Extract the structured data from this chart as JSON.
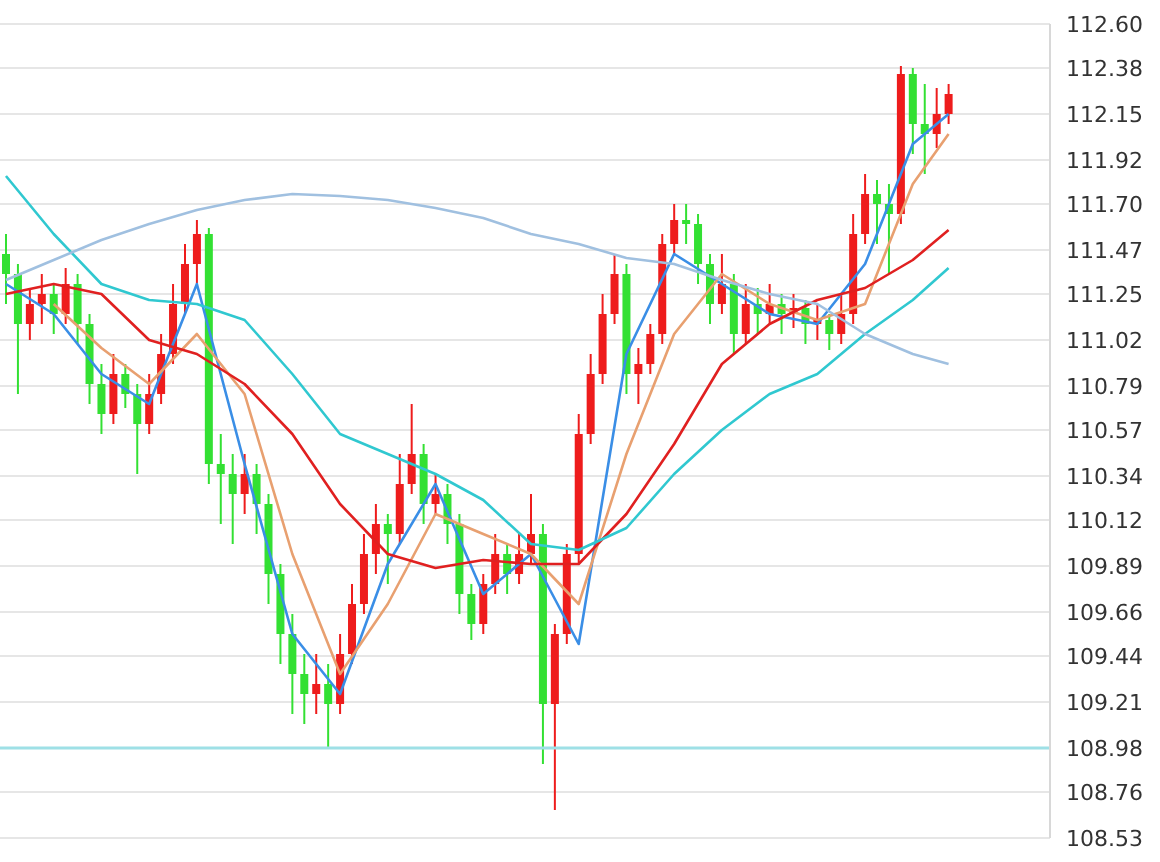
{
  "chart_data": {
    "type": "candlestick",
    "categories": [
      null,
      null,
      null,
      null,
      null,
      null,
      null,
      null,
      null,
      null,
      null,
      null,
      null,
      null,
      null,
      null,
      null,
      null,
      null,
      null,
      null,
      null,
      null,
      null,
      null,
      null,
      null,
      null,
      null,
      null,
      null,
      null,
      null,
      null,
      null,
      null,
      null,
      null,
      null,
      null,
      null,
      null,
      null,
      null,
      null,
      null,
      null,
      null,
      null,
      null,
      null,
      null,
      null,
      null,
      null,
      null,
      null,
      null,
      null,
      null,
      null,
      null,
      null,
      null,
      null,
      null,
      null,
      null,
      null,
      null,
      null,
      null,
      null,
      null,
      null,
      null,
      null,
      null,
      null,
      null,
      null,
      null,
      null,
      null,
      null,
      null,
      null,
      null
    ],
    "ohlc": [
      [
        111.45,
        111.55,
        111.2,
        111.35
      ],
      [
        111.35,
        111.4,
        110.75,
        111.1
      ],
      [
        111.1,
        111.28,
        111.02,
        111.2
      ],
      [
        111.2,
        111.35,
        111.1,
        111.25
      ],
      [
        111.25,
        111.3,
        111.05,
        111.15
      ],
      [
        111.15,
        111.38,
        111.1,
        111.3
      ],
      [
        111.3,
        111.35,
        111.0,
        111.1
      ],
      [
        111.1,
        111.15,
        110.7,
        110.8
      ],
      [
        110.8,
        110.9,
        110.55,
        110.65
      ],
      [
        110.65,
        110.95,
        110.6,
        110.85
      ],
      [
        110.85,
        110.9,
        110.68,
        110.75
      ],
      [
        110.75,
        110.8,
        110.35,
        110.6
      ],
      [
        110.6,
        110.85,
        110.55,
        110.75
      ],
      [
        110.75,
        111.05,
        110.7,
        110.95
      ],
      [
        110.95,
        111.3,
        110.9,
        111.2
      ],
      [
        111.2,
        111.5,
        111.15,
        111.4
      ],
      [
        111.4,
        111.62,
        111.3,
        111.55
      ],
      [
        111.55,
        111.58,
        110.3,
        110.4
      ],
      [
        110.4,
        110.55,
        110.1,
        110.35
      ],
      [
        110.35,
        110.45,
        110.0,
        110.25
      ],
      [
        110.25,
        110.45,
        110.15,
        110.35
      ],
      [
        110.35,
        110.4,
        110.05,
        110.2
      ],
      [
        110.2,
        110.25,
        109.7,
        109.85
      ],
      [
        109.85,
        109.9,
        109.4,
        109.55
      ],
      [
        109.55,
        109.65,
        109.15,
        109.35
      ],
      [
        109.35,
        109.45,
        109.1,
        109.25
      ],
      [
        109.25,
        109.45,
        109.15,
        109.3
      ],
      [
        109.3,
        109.4,
        108.98,
        109.2
      ],
      [
        109.2,
        109.55,
        109.15,
        109.45
      ],
      [
        109.45,
        109.8,
        109.4,
        109.7
      ],
      [
        109.7,
        110.05,
        109.65,
        109.95
      ],
      [
        109.95,
        110.2,
        109.85,
        110.1
      ],
      [
        110.1,
        110.15,
        109.8,
        110.05
      ],
      [
        110.05,
        110.45,
        110.0,
        110.3
      ],
      [
        110.3,
        110.7,
        110.25,
        110.45
      ],
      [
        110.45,
        110.5,
        110.1,
        110.2
      ],
      [
        110.2,
        110.35,
        110.15,
        110.25
      ],
      [
        110.25,
        110.3,
        110.0,
        110.1
      ],
      [
        110.1,
        110.15,
        109.65,
        109.75
      ],
      [
        109.75,
        109.8,
        109.52,
        109.6
      ],
      [
        109.6,
        109.85,
        109.55,
        109.8
      ],
      [
        109.8,
        110.05,
        109.75,
        109.95
      ],
      [
        109.95,
        110.0,
        109.75,
        109.85
      ],
      [
        109.85,
        110.05,
        109.8,
        109.95
      ],
      [
        109.95,
        110.25,
        109.9,
        110.05
      ],
      [
        110.05,
        110.1,
        108.9,
        109.2
      ],
      [
        109.2,
        109.6,
        108.67,
        109.55
      ],
      [
        109.55,
        110.0,
        109.5,
        109.95
      ],
      [
        109.95,
        110.65,
        109.9,
        110.55
      ],
      [
        110.55,
        110.95,
        110.5,
        110.85
      ],
      [
        110.85,
        111.25,
        110.8,
        111.15
      ],
      [
        111.15,
        111.45,
        111.1,
        111.35
      ],
      [
        111.35,
        111.4,
        110.75,
        110.85
      ],
      [
        110.85,
        110.98,
        110.7,
        110.9
      ],
      [
        110.9,
        111.1,
        110.85,
        111.05
      ],
      [
        111.05,
        111.55,
        111.0,
        111.5
      ],
      [
        111.5,
        111.7,
        111.45,
        111.62
      ],
      [
        111.62,
        111.7,
        111.5,
        111.6
      ],
      [
        111.6,
        111.65,
        111.3,
        111.4
      ],
      [
        111.4,
        111.45,
        111.1,
        111.2
      ],
      [
        111.2,
        111.45,
        111.15,
        111.3
      ],
      [
        111.3,
        111.35,
        110.95,
        111.05
      ],
      [
        111.05,
        111.3,
        111.0,
        111.2
      ],
      [
        111.2,
        111.28,
        111.05,
        111.15
      ],
      [
        111.15,
        111.3,
        111.1,
        111.2
      ],
      [
        111.2,
        111.25,
        111.05,
        111.15
      ],
      [
        111.15,
        111.25,
        111.08,
        111.18
      ],
      [
        111.18,
        111.22,
        111.0,
        111.1
      ],
      [
        111.1,
        111.2,
        111.02,
        111.12
      ],
      [
        111.12,
        111.15,
        110.97,
        111.05
      ],
      [
        111.05,
        111.25,
        111.0,
        111.15
      ],
      [
        111.15,
        111.65,
        111.1,
        111.55
      ],
      [
        111.55,
        111.85,
        111.5,
        111.75
      ],
      [
        111.75,
        111.82,
        111.5,
        111.7
      ],
      [
        111.7,
        111.8,
        111.35,
        111.65
      ],
      [
        111.65,
        112.39,
        111.6,
        112.35
      ],
      [
        112.35,
        112.38,
        111.95,
        112.1
      ],
      [
        112.1,
        112.3,
        111.85,
        112.05
      ],
      [
        112.05,
        112.28,
        111.98,
        112.15
      ],
      [
        112.15,
        112.3,
        112.1,
        112.25
      ],
      null,
      null,
      null,
      null,
      null,
      null,
      null,
      null
    ],
    "colors": [
      "#33e033",
      "#33e033",
      "#ee1c1c",
      "#ee1c1c",
      "#33e033",
      "#ee1c1c",
      "#33e033",
      "#33e033",
      "#33e033",
      "#ee1c1c",
      "#33e033",
      "#33e033",
      "#ee1c1c",
      "#ee1c1c",
      "#ee1c1c",
      "#ee1c1c",
      "#ee1c1c",
      "#33e033",
      "#33e033",
      "#33e033",
      "#ee1c1c",
      "#33e033",
      "#33e033",
      "#33e033",
      "#33e033",
      "#33e033",
      "#ee1c1c",
      "#33e033",
      "#ee1c1c",
      "#ee1c1c",
      "#ee1c1c",
      "#ee1c1c",
      "#33e033",
      "#ee1c1c",
      "#ee1c1c",
      "#33e033",
      "#ee1c1c",
      "#33e033",
      "#33e033",
      "#33e033",
      "#ee1c1c",
      "#ee1c1c",
      "#33e033",
      "#ee1c1c",
      "#ee1c1c",
      "#33e033",
      "#ee1c1c",
      "#ee1c1c",
      "#ee1c1c",
      "#ee1c1c",
      "#ee1c1c",
      "#ee1c1c",
      "#33e033",
      "#ee1c1c",
      "#ee1c1c",
      "#ee1c1c",
      "#ee1c1c",
      "#33e033",
      "#33e033",
      "#33e033",
      "#ee1c1c",
      "#33e033",
      "#ee1c1c",
      "#33e033",
      "#ee1c1c",
      "#33e033",
      "#ee1c1c",
      "#33e033",
      "#ee1c1c",
      "#33e033",
      "#ee1c1c",
      "#ee1c1c",
      "#ee1c1c",
      "#33e033",
      "#33e033",
      "#ee1c1c",
      "#33e033",
      "#33e033",
      "#ee1c1c",
      "#ee1c1c",
      null,
      null,
      null,
      null,
      null,
      null,
      null,
      null
    ],
    "series": [
      {
        "type": "line",
        "color": "#3a8ee6",
        "values": [
          111.3,
          null,
          null,
          null,
          111.15,
          null,
          null,
          null,
          110.85,
          null,
          null,
          null,
          110.7,
          null,
          null,
          null,
          111.3,
          null,
          null,
          null,
          110.4,
          null,
          null,
          null,
          109.55,
          null,
          null,
          null,
          109.25,
          null,
          null,
          null,
          109.9,
          null,
          null,
          null,
          110.3,
          null,
          null,
          null,
          109.75,
          null,
          null,
          null,
          109.95,
          null,
          null,
          null,
          109.5,
          null,
          null,
          null,
          110.95,
          null,
          null,
          null,
          111.45,
          null,
          null,
          null,
          111.3,
          null,
          null,
          null,
          111.15,
          null,
          null,
          null,
          111.1,
          null,
          null,
          null,
          111.4,
          null,
          null,
          null,
          112.0,
          null,
          null,
          112.15,
          null,
          null,
          null,
          null,
          null,
          null,
          null,
          null
        ]
      },
      {
        "type": "line",
        "color": "#e8a070",
        "values": [
          null,
          null,
          null,
          null,
          111.2,
          null,
          null,
          null,
          110.98,
          null,
          null,
          null,
          110.8,
          null,
          null,
          null,
          111.05,
          null,
          null,
          null,
          110.75,
          null,
          null,
          null,
          109.95,
          null,
          null,
          null,
          109.35,
          null,
          null,
          null,
          109.7,
          null,
          null,
          null,
          110.15,
          null,
          null,
          null,
          110.05,
          null,
          null,
          null,
          109.95,
          null,
          null,
          null,
          109.7,
          null,
          null,
          null,
          110.45,
          null,
          null,
          null,
          111.05,
          null,
          null,
          null,
          111.35,
          null,
          null,
          null,
          111.2,
          null,
          null,
          null,
          111.12,
          null,
          null,
          null,
          111.2,
          null,
          null,
          null,
          111.8,
          null,
          null,
          112.05,
          null,
          null,
          null,
          null,
          null,
          null,
          null,
          null
        ]
      },
      {
        "type": "line",
        "color": "#e02020",
        "values": [
          111.25,
          null,
          null,
          null,
          111.3,
          null,
          null,
          null,
          111.25,
          null,
          null,
          null,
          111.02,
          null,
          null,
          null,
          110.95,
          null,
          null,
          null,
          110.8,
          null,
          null,
          null,
          110.55,
          null,
          null,
          null,
          110.2,
          null,
          null,
          null,
          109.95,
          null,
          null,
          null,
          109.88,
          null,
          null,
          null,
          109.92,
          null,
          null,
          null,
          109.9,
          null,
          null,
          null,
          109.9,
          null,
          null,
          null,
          110.15,
          null,
          null,
          null,
          110.5,
          null,
          null,
          null,
          110.9,
          null,
          null,
          null,
          111.1,
          null,
          null,
          null,
          111.22,
          null,
          null,
          null,
          111.28,
          null,
          null,
          null,
          111.42,
          null,
          null,
          111.57,
          null,
          null,
          null,
          null,
          null,
          null,
          null,
          null
        ]
      },
      {
        "type": "line",
        "color": "#30c8d0",
        "values": [
          111.84,
          null,
          null,
          null,
          111.55,
          null,
          null,
          null,
          111.3,
          null,
          null,
          null,
          111.22,
          null,
          null,
          null,
          111.2,
          null,
          null,
          null,
          111.12,
          null,
          null,
          null,
          110.85,
          null,
          null,
          null,
          110.55,
          null,
          null,
          null,
          110.45,
          null,
          null,
          null,
          110.35,
          null,
          null,
          null,
          110.22,
          null,
          null,
          null,
          110.0,
          null,
          null,
          null,
          109.97,
          null,
          null,
          null,
          110.08,
          null,
          null,
          null,
          110.35,
          null,
          null,
          null,
          110.57,
          null,
          null,
          null,
          110.75,
          null,
          null,
          null,
          110.85,
          null,
          null,
          null,
          111.05,
          null,
          null,
          null,
          111.22,
          null,
          null,
          111.38,
          null,
          null,
          null,
          null,
          null,
          null,
          null,
          null
        ]
      },
      {
        "type": "line",
        "color": "#a0c0e0",
        "values": [
          111.32,
          null,
          null,
          null,
          111.42,
          null,
          null,
          null,
          111.52,
          null,
          null,
          null,
          111.6,
          null,
          null,
          null,
          111.67,
          null,
          null,
          null,
          111.72,
          null,
          null,
          null,
          111.75,
          null,
          null,
          null,
          111.74,
          null,
          null,
          null,
          111.72,
          null,
          null,
          null,
          111.68,
          null,
          null,
          null,
          111.63,
          null,
          null,
          null,
          111.55,
          null,
          null,
          null,
          111.5,
          null,
          null,
          null,
          111.43,
          null,
          null,
          null,
          111.4,
          null,
          null,
          null,
          111.32,
          null,
          null,
          null,
          111.25,
          null,
          null,
          null,
          111.2,
          null,
          null,
          null,
          111.05,
          null,
          null,
          null,
          110.95,
          null,
          null,
          110.9,
          null,
          null,
          null,
          null,
          null,
          null,
          null,
          null
        ]
      }
    ],
    "ylim": [
      108.53,
      112.6
    ],
    "yticks": [
      108.53,
      108.76,
      108.98,
      109.21,
      109.44,
      109.66,
      109.89,
      110.12,
      110.34,
      110.57,
      110.79,
      111.02,
      111.25,
      111.47,
      {
        "value": 111.7,
        "label": "111.70"
      },
      111.92,
      112.15,
      112.38,
      {
        "value": 112.6,
        "label": "112.60"
      }
    ],
    "ref_lines": [
      {
        "axis": "y",
        "value": 108.98,
        "color": "#9ee0e6"
      }
    ],
    "grid": "y",
    "tick_labels": "y"
  }
}
